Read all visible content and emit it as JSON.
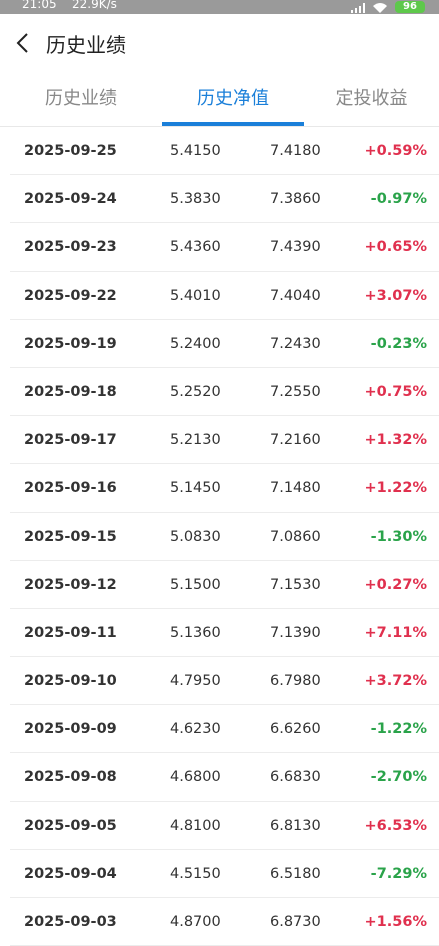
{
  "status_bar": {
    "time": "21:05",
    "speed": "22.9K/s",
    "battery": "96"
  },
  "header": {
    "title": "历史业绩"
  },
  "tabs": [
    {
      "label": "历史业绩",
      "active": false
    },
    {
      "label": "历史净值",
      "active": true
    },
    {
      "label": "定投收益",
      "active": false
    }
  ],
  "colors": {
    "accent": "#1a7fd9",
    "up": "#e0304e",
    "down": "#2aa34a"
  },
  "rows": [
    {
      "date": "2025-09-25",
      "nav": "5.4150",
      "acc_nav": "7.4180",
      "change": "+0.59%",
      "dir": "up"
    },
    {
      "date": "2025-09-24",
      "nav": "5.3830",
      "acc_nav": "7.3860",
      "change": "-0.97%",
      "dir": "down"
    },
    {
      "date": "2025-09-23",
      "nav": "5.4360",
      "acc_nav": "7.4390",
      "change": "+0.65%",
      "dir": "up"
    },
    {
      "date": "2025-09-22",
      "nav": "5.4010",
      "acc_nav": "7.4040",
      "change": "+3.07%",
      "dir": "up"
    },
    {
      "date": "2025-09-19",
      "nav": "5.2400",
      "acc_nav": "7.2430",
      "change": "-0.23%",
      "dir": "down"
    },
    {
      "date": "2025-09-18",
      "nav": "5.2520",
      "acc_nav": "7.2550",
      "change": "+0.75%",
      "dir": "up"
    },
    {
      "date": "2025-09-17",
      "nav": "5.2130",
      "acc_nav": "7.2160",
      "change": "+1.32%",
      "dir": "up"
    },
    {
      "date": "2025-09-16",
      "nav": "5.1450",
      "acc_nav": "7.1480",
      "change": "+1.22%",
      "dir": "up"
    },
    {
      "date": "2025-09-15",
      "nav": "5.0830",
      "acc_nav": "7.0860",
      "change": "-1.30%",
      "dir": "down"
    },
    {
      "date": "2025-09-12",
      "nav": "5.1500",
      "acc_nav": "7.1530",
      "change": "+0.27%",
      "dir": "up"
    },
    {
      "date": "2025-09-11",
      "nav": "5.1360",
      "acc_nav": "7.1390",
      "change": "+7.11%",
      "dir": "up"
    },
    {
      "date": "2025-09-10",
      "nav": "4.7950",
      "acc_nav": "6.7980",
      "change": "+3.72%",
      "dir": "up"
    },
    {
      "date": "2025-09-09",
      "nav": "4.6230",
      "acc_nav": "6.6260",
      "change": "-1.22%",
      "dir": "down"
    },
    {
      "date": "2025-09-08",
      "nav": "4.6800",
      "acc_nav": "6.6830",
      "change": "-2.70%",
      "dir": "down"
    },
    {
      "date": "2025-09-05",
      "nav": "4.8100",
      "acc_nav": "6.8130",
      "change": "+6.53%",
      "dir": "up"
    },
    {
      "date": "2025-09-04",
      "nav": "4.5150",
      "acc_nav": "6.5180",
      "change": "-7.29%",
      "dir": "down"
    },
    {
      "date": "2025-09-03",
      "nav": "4.8700",
      "acc_nav": "6.8730",
      "change": "+1.56%",
      "dir": "up"
    }
  ]
}
